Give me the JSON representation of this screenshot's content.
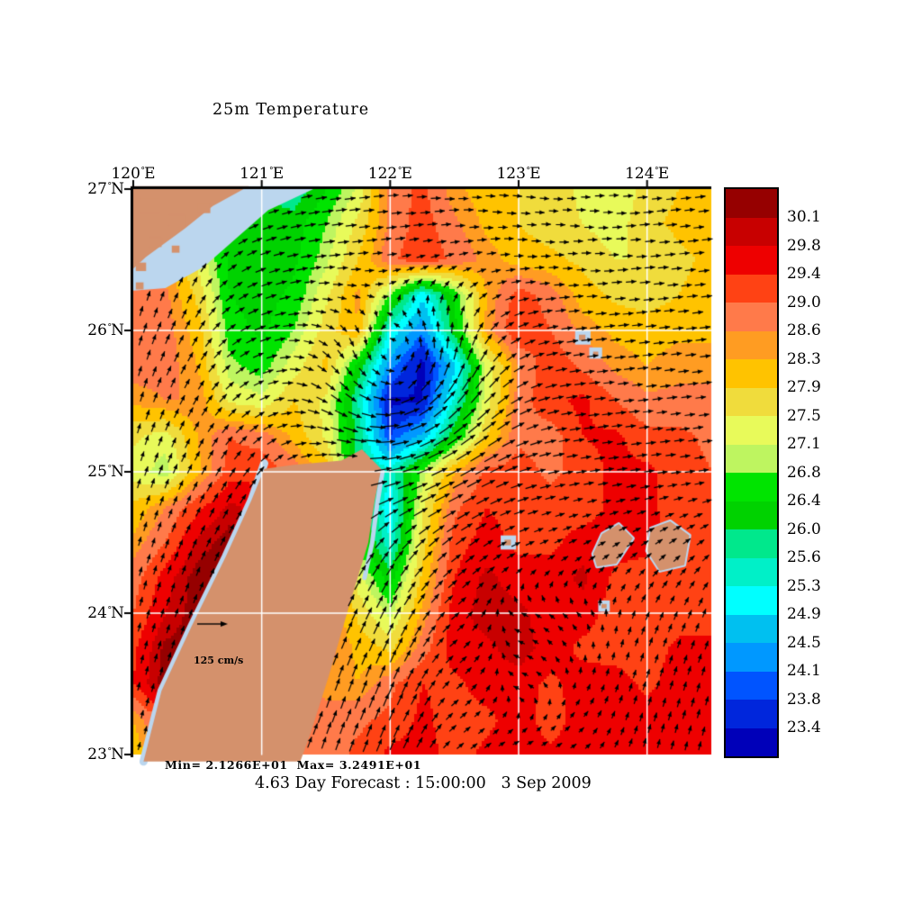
{
  "title": "25m Temperature",
  "annotations": {
    "minmax": "Min= 2.1266E+01  Max= 3.2491E+01",
    "caption": "4.63 Day Forecast : 15:00:00   3 Sep 2009",
    "scale_label": "125 cm/s"
  },
  "axes": {
    "degree_symbol": "°",
    "lon_ticks": [
      {
        "num": "120",
        "suffix": "E",
        "lon": 120
      },
      {
        "num": "121",
        "suffix": "E",
        "lon": 121
      },
      {
        "num": "122",
        "suffix": "E",
        "lon": 122
      },
      {
        "num": "123",
        "suffix": "E",
        "lon": 123
      },
      {
        "num": "124",
        "suffix": "E",
        "lon": 124
      }
    ],
    "lat_ticks": [
      {
        "num": "27",
        "suffix": "N",
        "lat": 27
      },
      {
        "num": "26",
        "suffix": "N",
        "lat": 26
      },
      {
        "num": "25",
        "suffix": "N",
        "lat": 25
      },
      {
        "num": "24",
        "suffix": "N",
        "lat": 24
      },
      {
        "num": "23",
        "suffix": "N",
        "lat": 23
      }
    ]
  },
  "colorbar": {
    "labels": [
      "30.1",
      "29.8",
      "29.4",
      "29.0",
      "28.6",
      "28.3",
      "27.9",
      "27.5",
      "27.1",
      "26.8",
      "26.4",
      "26.0",
      "25.6",
      "25.3",
      "24.9",
      "24.5",
      "24.1",
      "23.8",
      "23.4"
    ]
  },
  "colors": {
    "land": "#D4916C",
    "shallow": "#BBD6EE",
    "grid": "#FFFFFF",
    "arrow": "#000000",
    "frame": "#000000",
    "background": "#FFFFFF"
  },
  "chart_data": {
    "type": "heatmap",
    "title": "25m Temperature",
    "subtitle": "4.63 Day Forecast : 15:00:00   3 Sep 2009",
    "min_label": "2.1266E+01",
    "max_label": "3.2491E+01",
    "lon_range": [
      120,
      124.5
    ],
    "lat_range": [
      23,
      27
    ],
    "x_ticks": [
      "120E",
      "121E",
      "122E",
      "123E",
      "124E"
    ],
    "y_ticks": [
      "27N",
      "26N",
      "25N",
      "24N",
      "23N"
    ],
    "levels": [
      23.4,
      23.8,
      24.1,
      24.5,
      24.9,
      25.3,
      25.6,
      26.0,
      26.4,
      26.8,
      27.1,
      27.5,
      27.9,
      28.3,
      28.6,
      29.0,
      29.4,
      29.8,
      30.1
    ],
    "band_colors": [
      "#0000B9",
      "#0026DC",
      "#0054FF",
      "#0098FF",
      "#00C0F0",
      "#00FFFF",
      "#00F0C8",
      "#00E88C",
      "#00D200",
      "#00E400",
      "#BEF560",
      "#E8FA5A",
      "#F0DC3C",
      "#FFC300",
      "#FF9C22",
      "#FF7A4A",
      "#FF4214",
      "#EE0000",
      "#C80000",
      "#960000"
    ],
    "grid": {
      "lons": [
        120,
        120.25,
        120.5,
        120.75,
        121,
        121.25,
        121.5,
        121.75,
        122,
        122.25,
        122.5,
        122.75,
        123,
        123.25,
        123.5,
        123.75,
        124,
        124.25,
        124.5
      ],
      "lats": [
        27,
        26.75,
        26.5,
        26.25,
        26,
        25.75,
        25.5,
        25.25,
        25,
        24.75,
        24.5,
        24.25,
        24,
        23.75,
        23.5,
        23.25,
        23
      ],
      "temperature": [
        [
          28.9,
          28.9,
          28.5,
          27.0,
          26.2,
          25.7,
          26.4,
          27.2,
          28.8,
          29.1,
          28.4,
          28.1,
          27.9,
          27.7,
          27.4,
          27.1,
          27.7,
          27.9,
          28.1
        ],
        [
          28.9,
          28.0,
          27.0,
          26.2,
          26.0,
          26.2,
          26.8,
          27.6,
          28.7,
          29.2,
          28.7,
          28.2,
          27.9,
          27.7,
          27.5,
          27.3,
          27.8,
          28.0,
          28.1
        ],
        [
          29.0,
          28.4,
          27.4,
          26.3,
          26.1,
          26.3,
          27.0,
          27.9,
          28.9,
          29.3,
          28.9,
          28.5,
          28.1,
          28.0,
          27.8,
          27.5,
          27.5,
          27.8,
          28.0
        ],
        [
          29.0,
          28.7,
          27.8,
          26.4,
          26.2,
          26.5,
          27.4,
          28.4,
          26.8,
          25.0,
          26.5,
          28.3,
          29.2,
          28.8,
          28.1,
          27.8,
          27.7,
          27.9,
          28.1
        ],
        [
          28.9,
          28.8,
          28.1,
          26.6,
          26.3,
          26.8,
          27.7,
          28.3,
          25.2,
          24.2,
          26.2,
          28.4,
          29.4,
          29.0,
          28.5,
          28.2,
          28.1,
          28.2,
          28.2
        ],
        [
          28.8,
          28.8,
          28.3,
          26.9,
          26.6,
          27.3,
          28.0,
          26.3,
          24.3,
          23.2,
          24.8,
          27.2,
          28.6,
          29.3,
          28.9,
          28.5,
          28.3,
          28.5,
          28.5
        ],
        [
          28.4,
          28.6,
          28.6,
          27.4,
          27.2,
          27.9,
          27.4,
          25.6,
          23.3,
          23.4,
          25.4,
          27.3,
          28.8,
          29.3,
          29.5,
          29.0,
          28.7,
          28.7,
          28.7
        ],
        [
          27.6,
          27.3,
          28.3,
          29.0,
          28.8,
          28.2,
          27.4,
          25.9,
          23.8,
          24.6,
          26.3,
          27.9,
          28.9,
          28.8,
          29.4,
          29.5,
          29.1,
          29.1,
          28.9
        ],
        [
          27.3,
          26.9,
          28.2,
          29.2,
          29.3,
          28.8,
          28.2,
          25.8,
          25.4,
          26.9,
          28.3,
          29.1,
          29.2,
          28.9,
          29.2,
          29.5,
          29.5,
          29.2,
          29.0
        ],
        [
          28.0,
          28.6,
          29.3,
          29.9,
          29.6,
          29.2,
          28.4,
          26.3,
          25.0,
          27.4,
          28.9,
          29.4,
          29.2,
          29.2,
          29.2,
          29.5,
          29.5,
          29.2,
          29.0
        ],
        [
          28.4,
          29.0,
          29.9,
          30.3,
          29.9,
          29.4,
          28.6,
          26.8,
          25.3,
          27.7,
          29.2,
          29.6,
          29.3,
          29.3,
          29.6,
          29.6,
          29.6,
          29.2,
          29.0
        ],
        [
          28.8,
          29.6,
          30.3,
          30.3,
          29.6,
          29.2,
          28.7,
          27.3,
          26.2,
          28.0,
          29.4,
          29.9,
          29.6,
          29.6,
          29.9,
          29.3,
          29.1,
          29.2,
          29.2
        ],
        [
          29.0,
          29.8,
          30.3,
          30.0,
          29.4,
          29.0,
          28.8,
          27.8,
          27.0,
          28.4,
          29.6,
          30.0,
          29.9,
          29.6,
          29.6,
          29.2,
          29.0,
          29.2,
          29.2
        ],
        [
          29.3,
          30.2,
          30.3,
          29.7,
          29.2,
          29.0,
          28.8,
          28.2,
          27.8,
          28.8,
          29.6,
          29.7,
          30.0,
          29.6,
          29.3,
          29.2,
          29.2,
          29.5,
          29.5
        ],
        [
          29.4,
          30.3,
          30.2,
          29.8,
          29.3,
          28.9,
          28.5,
          28.3,
          28.9,
          29.4,
          29.3,
          29.6,
          29.6,
          29.3,
          29.6,
          29.6,
          29.3,
          29.6,
          29.6
        ],
        [
          28.3,
          29.2,
          29.7,
          29.9,
          29.4,
          29.0,
          28.7,
          28.9,
          29.1,
          29.5,
          29.2,
          29.3,
          29.6,
          29.2,
          29.6,
          29.6,
          29.6,
          29.6,
          29.6
        ],
        [
          28.0,
          28.8,
          29.5,
          29.7,
          29.3,
          29.0,
          28.8,
          29.1,
          29.5,
          29.6,
          29.2,
          29.5,
          29.6,
          29.5,
          29.6,
          29.6,
          29.6,
          29.6,
          29.6
        ]
      ]
    },
    "flow": {
      "units": "cm/s",
      "reference_speed": 125,
      "lons": [
        120,
        120.5,
        121,
        121.5,
        122,
        122.5,
        123,
        123.5,
        124,
        124.5
      ],
      "lats": [
        27,
        26.5,
        26,
        25.5,
        25,
        24.5,
        24,
        23.5,
        23
      ],
      "uv": [
        [
          [
            10,
            45
          ],
          [
            20,
            40
          ],
          [
            55,
            20
          ],
          [
            70,
            10
          ],
          [
            60,
            5
          ],
          [
            55,
            0
          ],
          [
            45,
            -5
          ],
          [
            45,
            0
          ],
          [
            55,
            5
          ],
          [
            60,
            8
          ]
        ],
        [
          [
            10,
            50
          ],
          [
            25,
            45
          ],
          [
            65,
            25
          ],
          [
            85,
            15
          ],
          [
            75,
            10
          ],
          [
            60,
            5
          ],
          [
            50,
            0
          ],
          [
            50,
            0
          ],
          [
            60,
            5
          ],
          [
            65,
            8
          ]
        ],
        [
          [
            15,
            55
          ],
          [
            30,
            50
          ],
          [
            75,
            35
          ],
          [
            85,
            25
          ],
          [
            80,
            20
          ],
          [
            70,
            15
          ],
          [
            75,
            10
          ],
          [
            70,
            8
          ],
          [
            65,
            8
          ],
          [
            65,
            8
          ]
        ],
        [
          [
            15,
            55
          ],
          [
            30,
            50
          ],
          [
            60,
            45
          ],
          [
            70,
            40
          ],
          [
            80,
            30
          ],
          [
            90,
            20
          ],
          [
            85,
            10
          ],
          [
            70,
            8
          ],
          [
            60,
            8
          ],
          [
            60,
            8
          ]
        ],
        [
          [
            15,
            50
          ],
          [
            25,
            50
          ],
          [
            40,
            55
          ],
          [
            50,
            60
          ],
          [
            70,
            50
          ],
          [
            90,
            35
          ],
          [
            80,
            15
          ],
          [
            60,
            10
          ],
          [
            55,
            8
          ],
          [
            55,
            8
          ]
        ],
        [
          [
            12,
            45
          ],
          [
            20,
            45
          ],
          [
            30,
            50
          ],
          [
            40,
            70
          ],
          [
            50,
            80
          ],
          [
            60,
            50
          ],
          [
            45,
            20
          ],
          [
            30,
            15
          ],
          [
            30,
            20
          ],
          [
            35,
            25
          ]
        ],
        [
          [
            10,
            40
          ],
          [
            15,
            40
          ],
          [
            25,
            45
          ],
          [
            35,
            80
          ],
          [
            45,
            90
          ],
          [
            45,
            40
          ],
          [
            -20,
            10
          ],
          [
            -10,
            12
          ],
          [
            15,
            35
          ],
          [
            15,
            40
          ]
        ],
        [
          [
            8,
            35
          ],
          [
            12,
            35
          ],
          [
            20,
            40
          ],
          [
            30,
            85
          ],
          [
            40,
            95
          ],
          [
            35,
            30
          ],
          [
            -15,
            5
          ],
          [
            5,
            12
          ],
          [
            12,
            40
          ],
          [
            12,
            42
          ]
        ],
        [
          [
            8,
            30
          ],
          [
            10,
            30
          ],
          [
            18,
            35
          ],
          [
            28,
            80
          ],
          [
            38,
            90
          ],
          [
            30,
            25
          ],
          [
            20,
            8
          ],
          [
            15,
            10
          ],
          [
            10,
            38
          ],
          [
            10,
            40
          ]
        ]
      ],
      "vortex": {
        "center": [
          122.1,
          25.55
        ],
        "radius": 0.42,
        "peak_speed": 95,
        "rotation": "ccw"
      }
    },
    "land": {
      "taiwan": [
        [
          121.02,
          25.02
        ],
        [
          121.25,
          25.05
        ],
        [
          121.62,
          25.08
        ],
        [
          121.78,
          25.16
        ],
        [
          121.93,
          25.02
        ],
        [
          121.88,
          24.8
        ],
        [
          121.83,
          24.5
        ],
        [
          121.68,
          24.05
        ],
        [
          121.52,
          23.55
        ],
        [
          121.38,
          23.15
        ],
        [
          121.3,
          22.95
        ],
        [
          120.08,
          22.95
        ],
        [
          120.22,
          23.45
        ],
        [
          120.45,
          23.9
        ],
        [
          120.72,
          24.4
        ],
        [
          120.92,
          24.8
        ]
      ],
      "taiwan_west_fringe": [
        [
          121.02,
          25.06
        ],
        [
          120.92,
          24.8
        ],
        [
          120.72,
          24.4
        ],
        [
          120.45,
          23.9
        ],
        [
          120.22,
          23.45
        ],
        [
          120.08,
          22.95
        ]
      ],
      "taiwan_east_fringe": [
        [
          121.94,
          25.0
        ],
        [
          121.9,
          24.78
        ],
        [
          121.86,
          24.5
        ],
        [
          121.8,
          24.25
        ]
      ],
      "china_shallow": [
        [
          119.98,
          27.02
        ],
        [
          121.45,
          27.02
        ],
        [
          121.05,
          26.85
        ],
        [
          120.55,
          26.45
        ],
        [
          120.25,
          26.3
        ],
        [
          119.98,
          26.28
        ]
      ],
      "china_coast": [
        [
          119.98,
          27.02
        ],
        [
          120.9,
          27.02
        ],
        [
          120.62,
          26.88
        ],
        [
          120.4,
          26.72
        ],
        [
          120.22,
          26.6
        ],
        [
          120.1,
          26.52
        ],
        [
          119.98,
          26.42
        ]
      ],
      "china_spots": [
        [
          120.05,
          26.93,
          0.15,
          0.1
        ],
        [
          120.28,
          26.82,
          0.12,
          0.08
        ],
        [
          120.5,
          26.9,
          0.1,
          0.07
        ],
        [
          120.12,
          26.66,
          0.1,
          0.07
        ],
        [
          120.02,
          26.48,
          0.08,
          0.06
        ],
        [
          120.3,
          26.6,
          0.06,
          0.05
        ],
        [
          120.02,
          26.34,
          0.06,
          0.05
        ]
      ],
      "islands": [
        {
          "shallow": [
            123.44,
            26.0,
            0.12,
            0.1
          ],
          "land": [
            123.47,
            25.97,
            0.05,
            0.04
          ]
        },
        {
          "shallow": [
            123.55,
            25.88,
            0.1,
            0.08
          ],
          "land": [
            123.58,
            25.85,
            0.04,
            0.03
          ]
        },
        {
          "shallow": [
            122.86,
            24.55,
            0.12,
            0.1
          ],
          "land": [
            122.89,
            24.52,
            0.05,
            0.04
          ]
        },
        {
          "pts": [
            [
              123.58,
              24.42
            ],
            [
              123.65,
              24.56
            ],
            [
              123.78,
              24.63
            ],
            [
              123.89,
              24.53
            ],
            [
              123.76,
              24.35
            ],
            [
              123.61,
              24.33
            ]
          ]
        },
        {
          "pts": [
            [
              124.03,
              24.6
            ],
            [
              124.18,
              24.65
            ],
            [
              124.33,
              24.55
            ],
            [
              124.29,
              24.34
            ],
            [
              124.1,
              24.3
            ],
            [
              124.0,
              24.44
            ]
          ]
        },
        {
          "shallow": [
            123.62,
            24.09,
            0.09,
            0.08
          ],
          "land": [
            123.645,
            24.065,
            0.04,
            0.03
          ]
        }
      ]
    }
  }
}
